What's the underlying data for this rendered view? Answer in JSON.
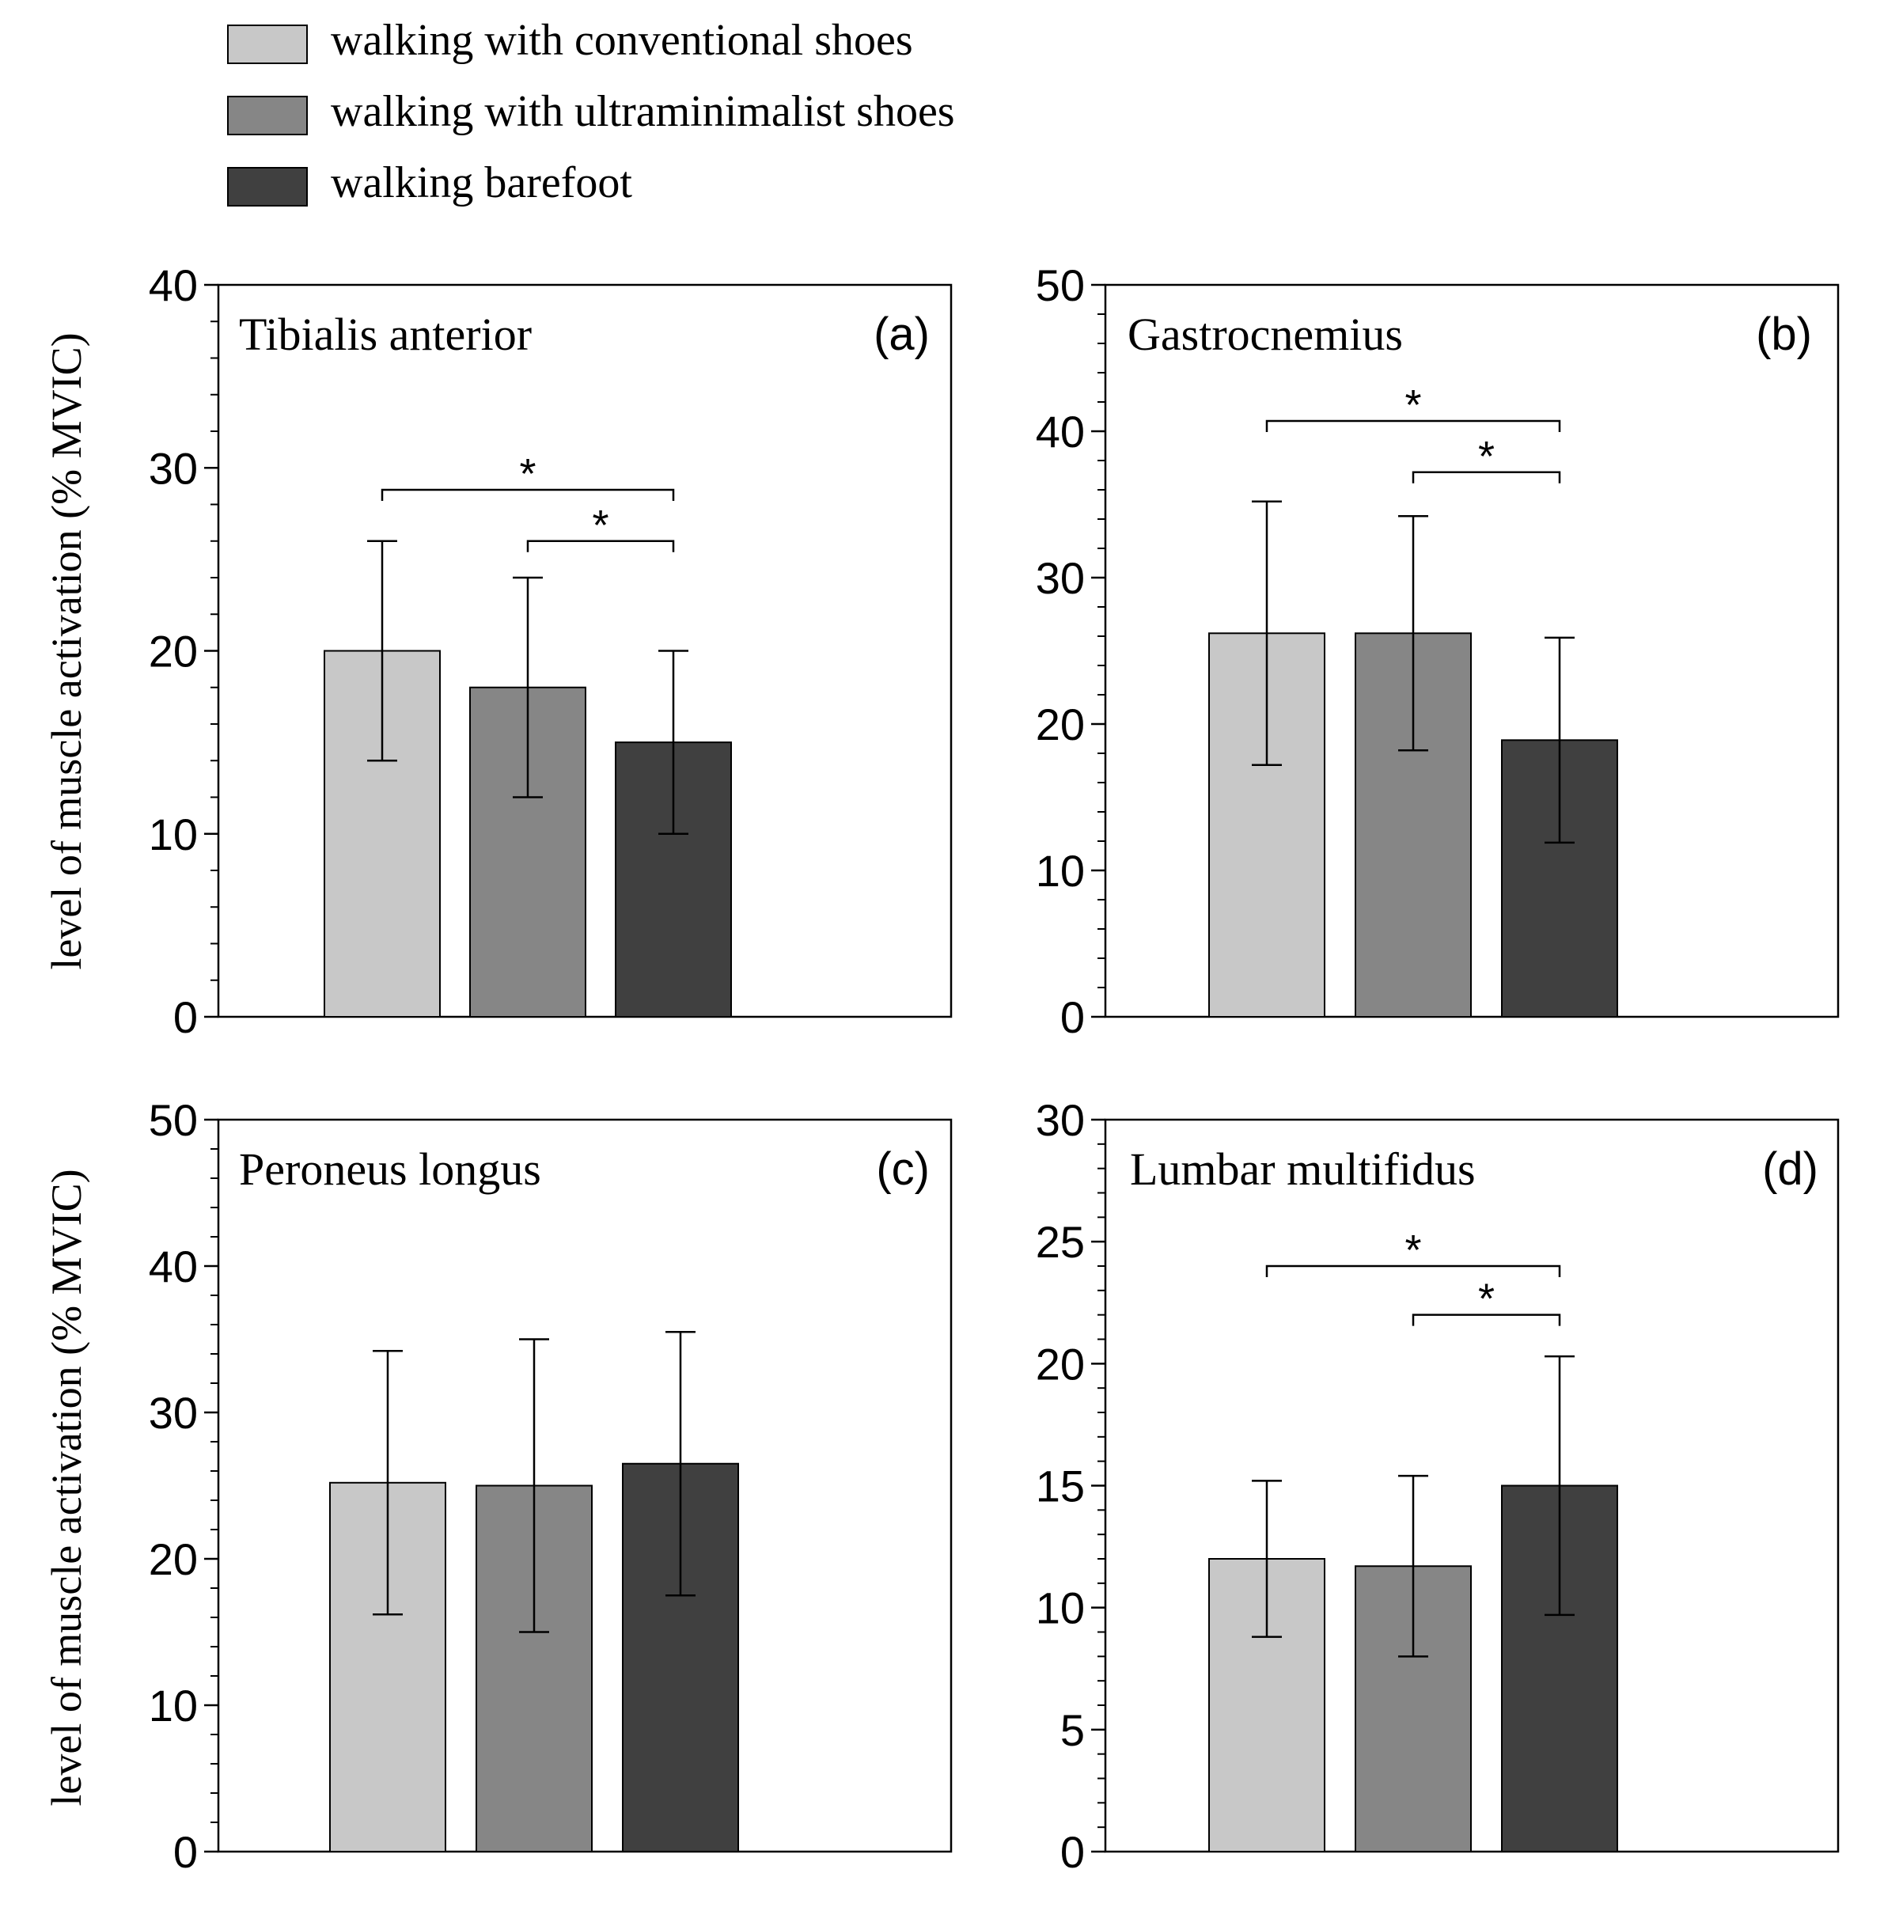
{
  "legend": {
    "items": [
      {
        "label": "walking with conventional shoes",
        "color": "#c8c8c8"
      },
      {
        "label": "walking with ultraminimalist shoes",
        "color": "#868686"
      },
      {
        "label": "walking barefoot",
        "color": "#404040"
      }
    ]
  },
  "shared_ylabel": "level of muscle activation (% MVIC)",
  "chart_data": [
    {
      "type": "bar",
      "panel": "(a)",
      "title": "Tibialis anterior",
      "ylabel": "level of muscle activation (% MVIC)",
      "ylim": [
        0,
        40
      ],
      "yticks": [
        0,
        10,
        20,
        30,
        40
      ],
      "series": [
        {
          "name": "walking with conventional shoes",
          "value": 20,
          "error": 6
        },
        {
          "name": "walking with ultraminimalist shoes",
          "value": 18,
          "error": 6
        },
        {
          "name": "walking barefoot",
          "value": 15,
          "error": 5
        }
      ],
      "significance": [
        {
          "from": 0,
          "to": 2,
          "y": 28.8,
          "label": "*"
        },
        {
          "from": 1,
          "to": 2,
          "y": 26,
          "label": "*"
        }
      ]
    },
    {
      "type": "bar",
      "panel": "(b)",
      "title": "Gastrocnemius",
      "ylabel": "",
      "ylim": [
        0,
        50
      ],
      "yticks": [
        0,
        10,
        20,
        30,
        40,
        50
      ],
      "series": [
        {
          "name": "walking with conventional shoes",
          "value": 26.2,
          "error": 9
        },
        {
          "name": "walking with ultraminimalist shoes",
          "value": 26.2,
          "error": 8
        },
        {
          "name": "walking barefoot",
          "value": 18.9,
          "error": 7
        }
      ],
      "significance": [
        {
          "from": 0,
          "to": 2,
          "y": 40.7,
          "label": "*"
        },
        {
          "from": 1,
          "to": 2,
          "y": 37.2,
          "label": "*"
        }
      ]
    },
    {
      "type": "bar",
      "panel": "(c)",
      "title": "Peroneus longus",
      "ylabel": "level of muscle activation (% MVIC)",
      "ylim": [
        0,
        50
      ],
      "yticks": [
        0,
        10,
        20,
        30,
        40,
        50
      ],
      "series": [
        {
          "name": "walking with conventional shoes",
          "value": 25.2,
          "error": 9
        },
        {
          "name": "walking with ultraminimalist shoes",
          "value": 25.0,
          "error": 10
        },
        {
          "name": "walking barefoot",
          "value": 26.5,
          "error": 9
        }
      ],
      "significance": []
    },
    {
      "type": "bar",
      "panel": "(d)",
      "title": "Lumbar multifidus",
      "ylabel": "",
      "ylim": [
        0,
        30
      ],
      "yticks": [
        0,
        5,
        10,
        15,
        20,
        25,
        30
      ],
      "series": [
        {
          "name": "walking with conventional shoes",
          "value": 12.0,
          "error": 3.2
        },
        {
          "name": "walking with ultraminimalist shoes",
          "value": 11.7,
          "error": 3.7
        },
        {
          "name": "walking barefoot",
          "value": 15.0,
          "error": 5.3
        }
      ],
      "significance": [
        {
          "from": 0,
          "to": 2,
          "y": 24.0,
          "label": "*"
        },
        {
          "from": 1,
          "to": 2,
          "y": 22.0,
          "label": "*"
        }
      ]
    }
  ]
}
